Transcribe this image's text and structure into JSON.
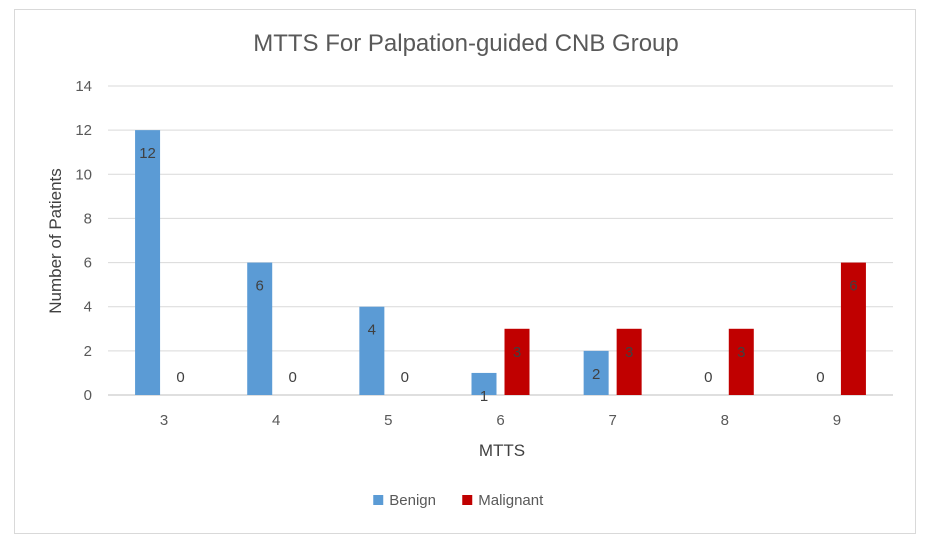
{
  "chart_data": {
    "type": "bar",
    "title": "MTTS For Palpation-guided CNB Group",
    "xlabel": "MTTS",
    "ylabel": "Number of Patients",
    "categories": [
      "3",
      "4",
      "5",
      "6",
      "7",
      "8",
      "9"
    ],
    "series": [
      {
        "name": "Benign",
        "color": "#5b9bd5",
        "values": [
          12,
          6,
          4,
          1,
          2,
          0,
          0
        ]
      },
      {
        "name": "Malignant",
        "color": "#c00000",
        "values": [
          0,
          0,
          0,
          3,
          3,
          3,
          6
        ]
      }
    ],
    "ylim": [
      0,
      14
    ],
    "yticks": [
      0,
      2,
      4,
      6,
      8,
      10,
      12,
      14
    ],
    "grid": true,
    "legend_position": "bottom"
  }
}
